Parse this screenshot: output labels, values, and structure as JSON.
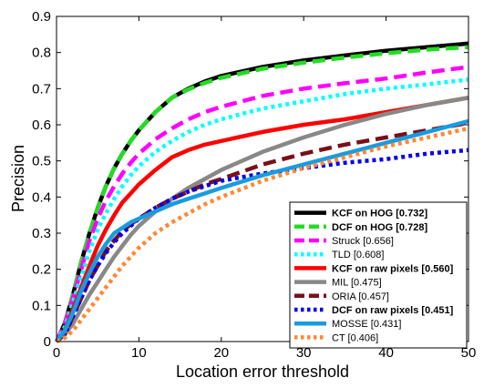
{
  "chart_data": {
    "type": "line",
    "title": "",
    "xlabel": "Location error threshold",
    "ylabel": "Precision",
    "xlim": [
      0,
      50
    ],
    "ylim": [
      0,
      0.9
    ],
    "x_ticks": [
      "0",
      "10",
      "20",
      "30",
      "40",
      "50"
    ],
    "y_ticks": [
      "0",
      "0.1",
      "0.2",
      "0.3",
      "0.4",
      "0.5",
      "0.6",
      "0.7",
      "0.8",
      "0.9"
    ],
    "grid": false,
    "legend_position": "bottom-right",
    "x": [
      0,
      1,
      2,
      3,
      4,
      5,
      6,
      7,
      8,
      9,
      10,
      12,
      14,
      16,
      18,
      20,
      25,
      30,
      35,
      40,
      45,
      50
    ],
    "series": [
      {
        "name": "KCF on HOG [0.732]",
        "bold": true,
        "color": "#000000",
        "dash": "solid",
        "values": [
          0.0,
          0.05,
          0.13,
          0.22,
          0.3,
          0.37,
          0.43,
          0.48,
          0.52,
          0.555,
          0.585,
          0.635,
          0.675,
          0.7,
          0.72,
          0.735,
          0.76,
          0.778,
          0.792,
          0.805,
          0.815,
          0.825
        ]
      },
      {
        "name": "DCF on HOG [0.728]",
        "bold": true,
        "color": "#22dd22",
        "dash": "dash",
        "values": [
          0.0,
          0.05,
          0.13,
          0.22,
          0.3,
          0.37,
          0.43,
          0.48,
          0.52,
          0.555,
          0.585,
          0.635,
          0.675,
          0.698,
          0.716,
          0.73,
          0.755,
          0.772,
          0.786,
          0.798,
          0.808,
          0.815
        ]
      },
      {
        "name": "Struck [0.656]",
        "bold": false,
        "color": "#ff00ff",
        "dash": "dash",
        "values": [
          0.0,
          0.05,
          0.12,
          0.2,
          0.28,
          0.34,
          0.39,
          0.43,
          0.465,
          0.495,
          0.52,
          0.56,
          0.59,
          0.615,
          0.635,
          0.65,
          0.68,
          0.7,
          0.715,
          0.728,
          0.745,
          0.76
        ]
      },
      {
        "name": "TLD [0.608]",
        "bold": false,
        "color": "#00ffff",
        "dash": "dot",
        "values": [
          0.0,
          0.04,
          0.11,
          0.18,
          0.25,
          0.31,
          0.355,
          0.395,
          0.43,
          0.46,
          0.485,
          0.525,
          0.555,
          0.58,
          0.6,
          0.615,
          0.645,
          0.665,
          0.685,
          0.7,
          0.712,
          0.725
        ]
      },
      {
        "name": "KCF on raw pixels [0.560]",
        "bold": true,
        "color": "#ff0000",
        "dash": "solid",
        "values": [
          0.0,
          0.03,
          0.09,
          0.15,
          0.21,
          0.265,
          0.31,
          0.35,
          0.385,
          0.41,
          0.435,
          0.475,
          0.51,
          0.53,
          0.545,
          0.555,
          0.58,
          0.6,
          0.615,
          0.635,
          0.655,
          0.675
        ]
      },
      {
        "name": "MIL [0.475]",
        "bold": false,
        "color": "#888888",
        "dash": "solid",
        "values": [
          0.0,
          0.02,
          0.05,
          0.09,
          0.13,
          0.165,
          0.2,
          0.235,
          0.265,
          0.295,
          0.32,
          0.36,
          0.395,
          0.425,
          0.45,
          0.475,
          0.525,
          0.565,
          0.6,
          0.63,
          0.655,
          0.675
        ]
      },
      {
        "name": "ORIA [0.457]",
        "bold": false,
        "color": "#7a0f1a",
        "dash": "dash",
        "values": [
          0.0,
          0.02,
          0.07,
          0.12,
          0.17,
          0.21,
          0.25,
          0.28,
          0.305,
          0.325,
          0.34,
          0.37,
          0.395,
          0.415,
          0.435,
          0.45,
          0.49,
          0.52,
          0.545,
          0.565,
          0.585,
          0.605
        ]
      },
      {
        "name": "DCF on raw pixels [0.451]",
        "bold": true,
        "color": "#0000ee",
        "dash": "dot",
        "values": [
          0.0,
          0.02,
          0.07,
          0.12,
          0.17,
          0.21,
          0.245,
          0.275,
          0.3,
          0.32,
          0.34,
          0.37,
          0.395,
          0.415,
          0.43,
          0.445,
          0.465,
          0.48,
          0.495,
          0.505,
          0.52,
          0.53
        ]
      },
      {
        "name": "MOSSE [0.431]",
        "bold": false,
        "color": "#1a9be0",
        "dash": "solid",
        "values": [
          0.0,
          0.03,
          0.08,
          0.14,
          0.19,
          0.235,
          0.27,
          0.3,
          0.315,
          0.33,
          0.34,
          0.36,
          0.38,
          0.395,
          0.41,
          0.425,
          0.46,
          0.49,
          0.52,
          0.55,
          0.58,
          0.61
        ]
      },
      {
        "name": "CT [0.406]",
        "bold": false,
        "color": "#ff8833",
        "dash": "dot",
        "values": [
          0.0,
          0.01,
          0.03,
          0.06,
          0.09,
          0.12,
          0.15,
          0.18,
          0.21,
          0.235,
          0.26,
          0.3,
          0.33,
          0.355,
          0.38,
          0.4,
          0.445,
          0.48,
          0.51,
          0.54,
          0.565,
          0.59
        ]
      }
    ]
  }
}
